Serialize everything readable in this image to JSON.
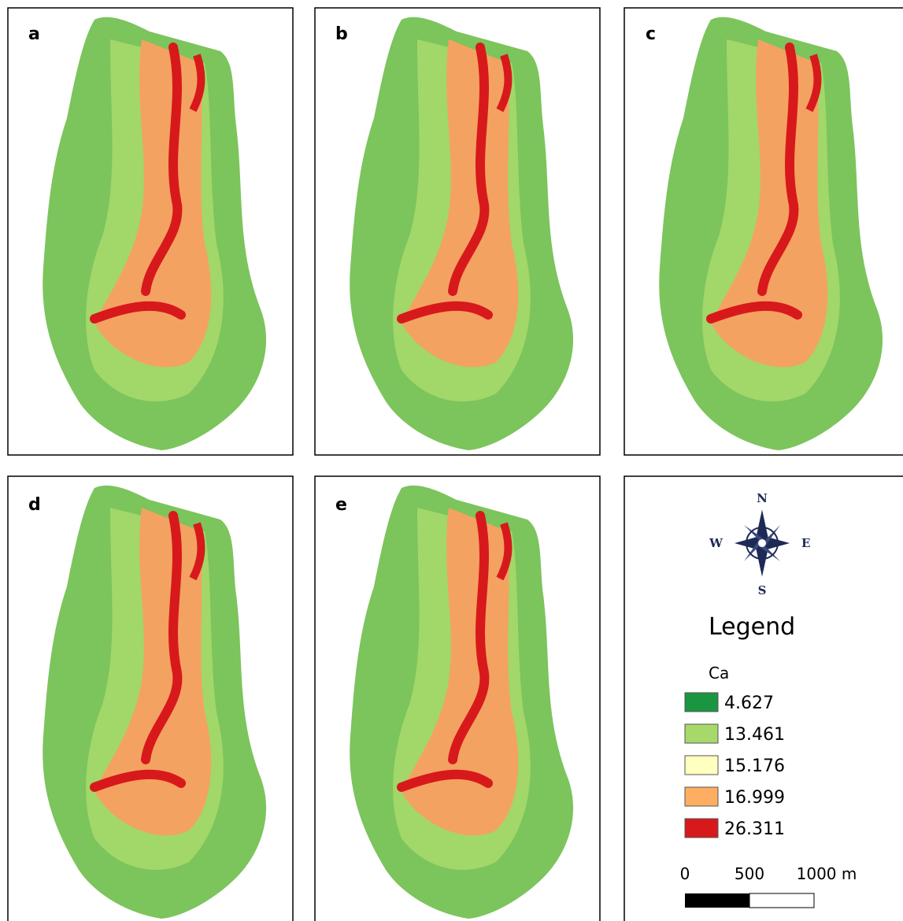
{
  "panels": [
    {
      "label": "a"
    },
    {
      "label": "b"
    },
    {
      "label": "c"
    },
    {
      "label": "d"
    },
    {
      "label": "e"
    }
  ],
  "compass": {
    "n": "N",
    "s": "S",
    "w": "W",
    "e": "E"
  },
  "legend": {
    "title": "Legend",
    "variable": "Ca",
    "items": [
      {
        "label": "4.627",
        "color": "#1a9641"
      },
      {
        "label": "13.461",
        "color": "#a6d96a"
      },
      {
        "label": "15.176",
        "color": "#ffffbf"
      },
      {
        "label": "16.999",
        "color": "#fdae61"
      },
      {
        "label": "26.311",
        "color": "#d7191c"
      }
    ]
  },
  "scale_bar": {
    "labels": [
      "0",
      "500",
      "1000 m"
    ]
  }
}
